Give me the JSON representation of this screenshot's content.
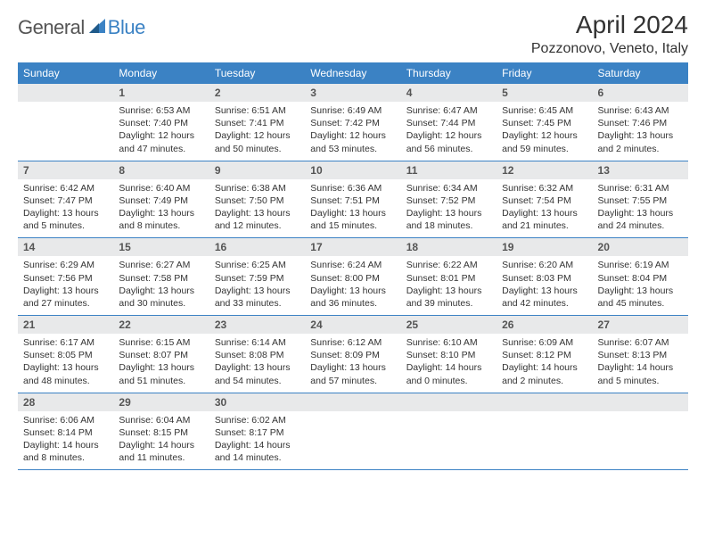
{
  "logo": {
    "word1": "General",
    "word2": "Blue",
    "accent": "#3b82c4",
    "text_color": "#555"
  },
  "header": {
    "title": "April 2024",
    "location": "Pozzonovo, Veneto, Italy"
  },
  "style": {
    "header_bg": "#3b82c4",
    "header_fg": "#ffffff",
    "daynum_bg": "#e8e9ea",
    "daynum_fg": "#555",
    "body_fg": "#333",
    "row_border": "#3b82c4",
    "page_bg": "#ffffff",
    "title_fontsize": 28,
    "location_fontsize": 16,
    "dayheader_fontsize": 12,
    "daynum_fontsize": 12,
    "body_fontsize": 10.5
  },
  "day_names": [
    "Sunday",
    "Monday",
    "Tuesday",
    "Wednesday",
    "Thursday",
    "Friday",
    "Saturday"
  ],
  "weeks": [
    [
      null,
      {
        "n": "1",
        "sunrise": "Sunrise: 6:53 AM",
        "sunset": "Sunset: 7:40 PM",
        "day1": "Daylight: 12 hours",
        "day2": "and 47 minutes."
      },
      {
        "n": "2",
        "sunrise": "Sunrise: 6:51 AM",
        "sunset": "Sunset: 7:41 PM",
        "day1": "Daylight: 12 hours",
        "day2": "and 50 minutes."
      },
      {
        "n": "3",
        "sunrise": "Sunrise: 6:49 AM",
        "sunset": "Sunset: 7:42 PM",
        "day1": "Daylight: 12 hours",
        "day2": "and 53 minutes."
      },
      {
        "n": "4",
        "sunrise": "Sunrise: 6:47 AM",
        "sunset": "Sunset: 7:44 PM",
        "day1": "Daylight: 12 hours",
        "day2": "and 56 minutes."
      },
      {
        "n": "5",
        "sunrise": "Sunrise: 6:45 AM",
        "sunset": "Sunset: 7:45 PM",
        "day1": "Daylight: 12 hours",
        "day2": "and 59 minutes."
      },
      {
        "n": "6",
        "sunrise": "Sunrise: 6:43 AM",
        "sunset": "Sunset: 7:46 PM",
        "day1": "Daylight: 13 hours",
        "day2": "and 2 minutes."
      }
    ],
    [
      {
        "n": "7",
        "sunrise": "Sunrise: 6:42 AM",
        "sunset": "Sunset: 7:47 PM",
        "day1": "Daylight: 13 hours",
        "day2": "and 5 minutes."
      },
      {
        "n": "8",
        "sunrise": "Sunrise: 6:40 AM",
        "sunset": "Sunset: 7:49 PM",
        "day1": "Daylight: 13 hours",
        "day2": "and 8 minutes."
      },
      {
        "n": "9",
        "sunrise": "Sunrise: 6:38 AM",
        "sunset": "Sunset: 7:50 PM",
        "day1": "Daylight: 13 hours",
        "day2": "and 12 minutes."
      },
      {
        "n": "10",
        "sunrise": "Sunrise: 6:36 AM",
        "sunset": "Sunset: 7:51 PM",
        "day1": "Daylight: 13 hours",
        "day2": "and 15 minutes."
      },
      {
        "n": "11",
        "sunrise": "Sunrise: 6:34 AM",
        "sunset": "Sunset: 7:52 PM",
        "day1": "Daylight: 13 hours",
        "day2": "and 18 minutes."
      },
      {
        "n": "12",
        "sunrise": "Sunrise: 6:32 AM",
        "sunset": "Sunset: 7:54 PM",
        "day1": "Daylight: 13 hours",
        "day2": "and 21 minutes."
      },
      {
        "n": "13",
        "sunrise": "Sunrise: 6:31 AM",
        "sunset": "Sunset: 7:55 PM",
        "day1": "Daylight: 13 hours",
        "day2": "and 24 minutes."
      }
    ],
    [
      {
        "n": "14",
        "sunrise": "Sunrise: 6:29 AM",
        "sunset": "Sunset: 7:56 PM",
        "day1": "Daylight: 13 hours",
        "day2": "and 27 minutes."
      },
      {
        "n": "15",
        "sunrise": "Sunrise: 6:27 AM",
        "sunset": "Sunset: 7:58 PM",
        "day1": "Daylight: 13 hours",
        "day2": "and 30 minutes."
      },
      {
        "n": "16",
        "sunrise": "Sunrise: 6:25 AM",
        "sunset": "Sunset: 7:59 PM",
        "day1": "Daylight: 13 hours",
        "day2": "and 33 minutes."
      },
      {
        "n": "17",
        "sunrise": "Sunrise: 6:24 AM",
        "sunset": "Sunset: 8:00 PM",
        "day1": "Daylight: 13 hours",
        "day2": "and 36 minutes."
      },
      {
        "n": "18",
        "sunrise": "Sunrise: 6:22 AM",
        "sunset": "Sunset: 8:01 PM",
        "day1": "Daylight: 13 hours",
        "day2": "and 39 minutes."
      },
      {
        "n": "19",
        "sunrise": "Sunrise: 6:20 AM",
        "sunset": "Sunset: 8:03 PM",
        "day1": "Daylight: 13 hours",
        "day2": "and 42 minutes."
      },
      {
        "n": "20",
        "sunrise": "Sunrise: 6:19 AM",
        "sunset": "Sunset: 8:04 PM",
        "day1": "Daylight: 13 hours",
        "day2": "and 45 minutes."
      }
    ],
    [
      {
        "n": "21",
        "sunrise": "Sunrise: 6:17 AM",
        "sunset": "Sunset: 8:05 PM",
        "day1": "Daylight: 13 hours",
        "day2": "and 48 minutes."
      },
      {
        "n": "22",
        "sunrise": "Sunrise: 6:15 AM",
        "sunset": "Sunset: 8:07 PM",
        "day1": "Daylight: 13 hours",
        "day2": "and 51 minutes."
      },
      {
        "n": "23",
        "sunrise": "Sunrise: 6:14 AM",
        "sunset": "Sunset: 8:08 PM",
        "day1": "Daylight: 13 hours",
        "day2": "and 54 minutes."
      },
      {
        "n": "24",
        "sunrise": "Sunrise: 6:12 AM",
        "sunset": "Sunset: 8:09 PM",
        "day1": "Daylight: 13 hours",
        "day2": "and 57 minutes."
      },
      {
        "n": "25",
        "sunrise": "Sunrise: 6:10 AM",
        "sunset": "Sunset: 8:10 PM",
        "day1": "Daylight: 14 hours",
        "day2": "and 0 minutes."
      },
      {
        "n": "26",
        "sunrise": "Sunrise: 6:09 AM",
        "sunset": "Sunset: 8:12 PM",
        "day1": "Daylight: 14 hours",
        "day2": "and 2 minutes."
      },
      {
        "n": "27",
        "sunrise": "Sunrise: 6:07 AM",
        "sunset": "Sunset: 8:13 PM",
        "day1": "Daylight: 14 hours",
        "day2": "and 5 minutes."
      }
    ],
    [
      {
        "n": "28",
        "sunrise": "Sunrise: 6:06 AM",
        "sunset": "Sunset: 8:14 PM",
        "day1": "Daylight: 14 hours",
        "day2": "and 8 minutes."
      },
      {
        "n": "29",
        "sunrise": "Sunrise: 6:04 AM",
        "sunset": "Sunset: 8:15 PM",
        "day1": "Daylight: 14 hours",
        "day2": "and 11 minutes."
      },
      {
        "n": "30",
        "sunrise": "Sunrise: 6:02 AM",
        "sunset": "Sunset: 8:17 PM",
        "day1": "Daylight: 14 hours",
        "day2": "and 14 minutes."
      },
      null,
      null,
      null,
      null
    ]
  ]
}
